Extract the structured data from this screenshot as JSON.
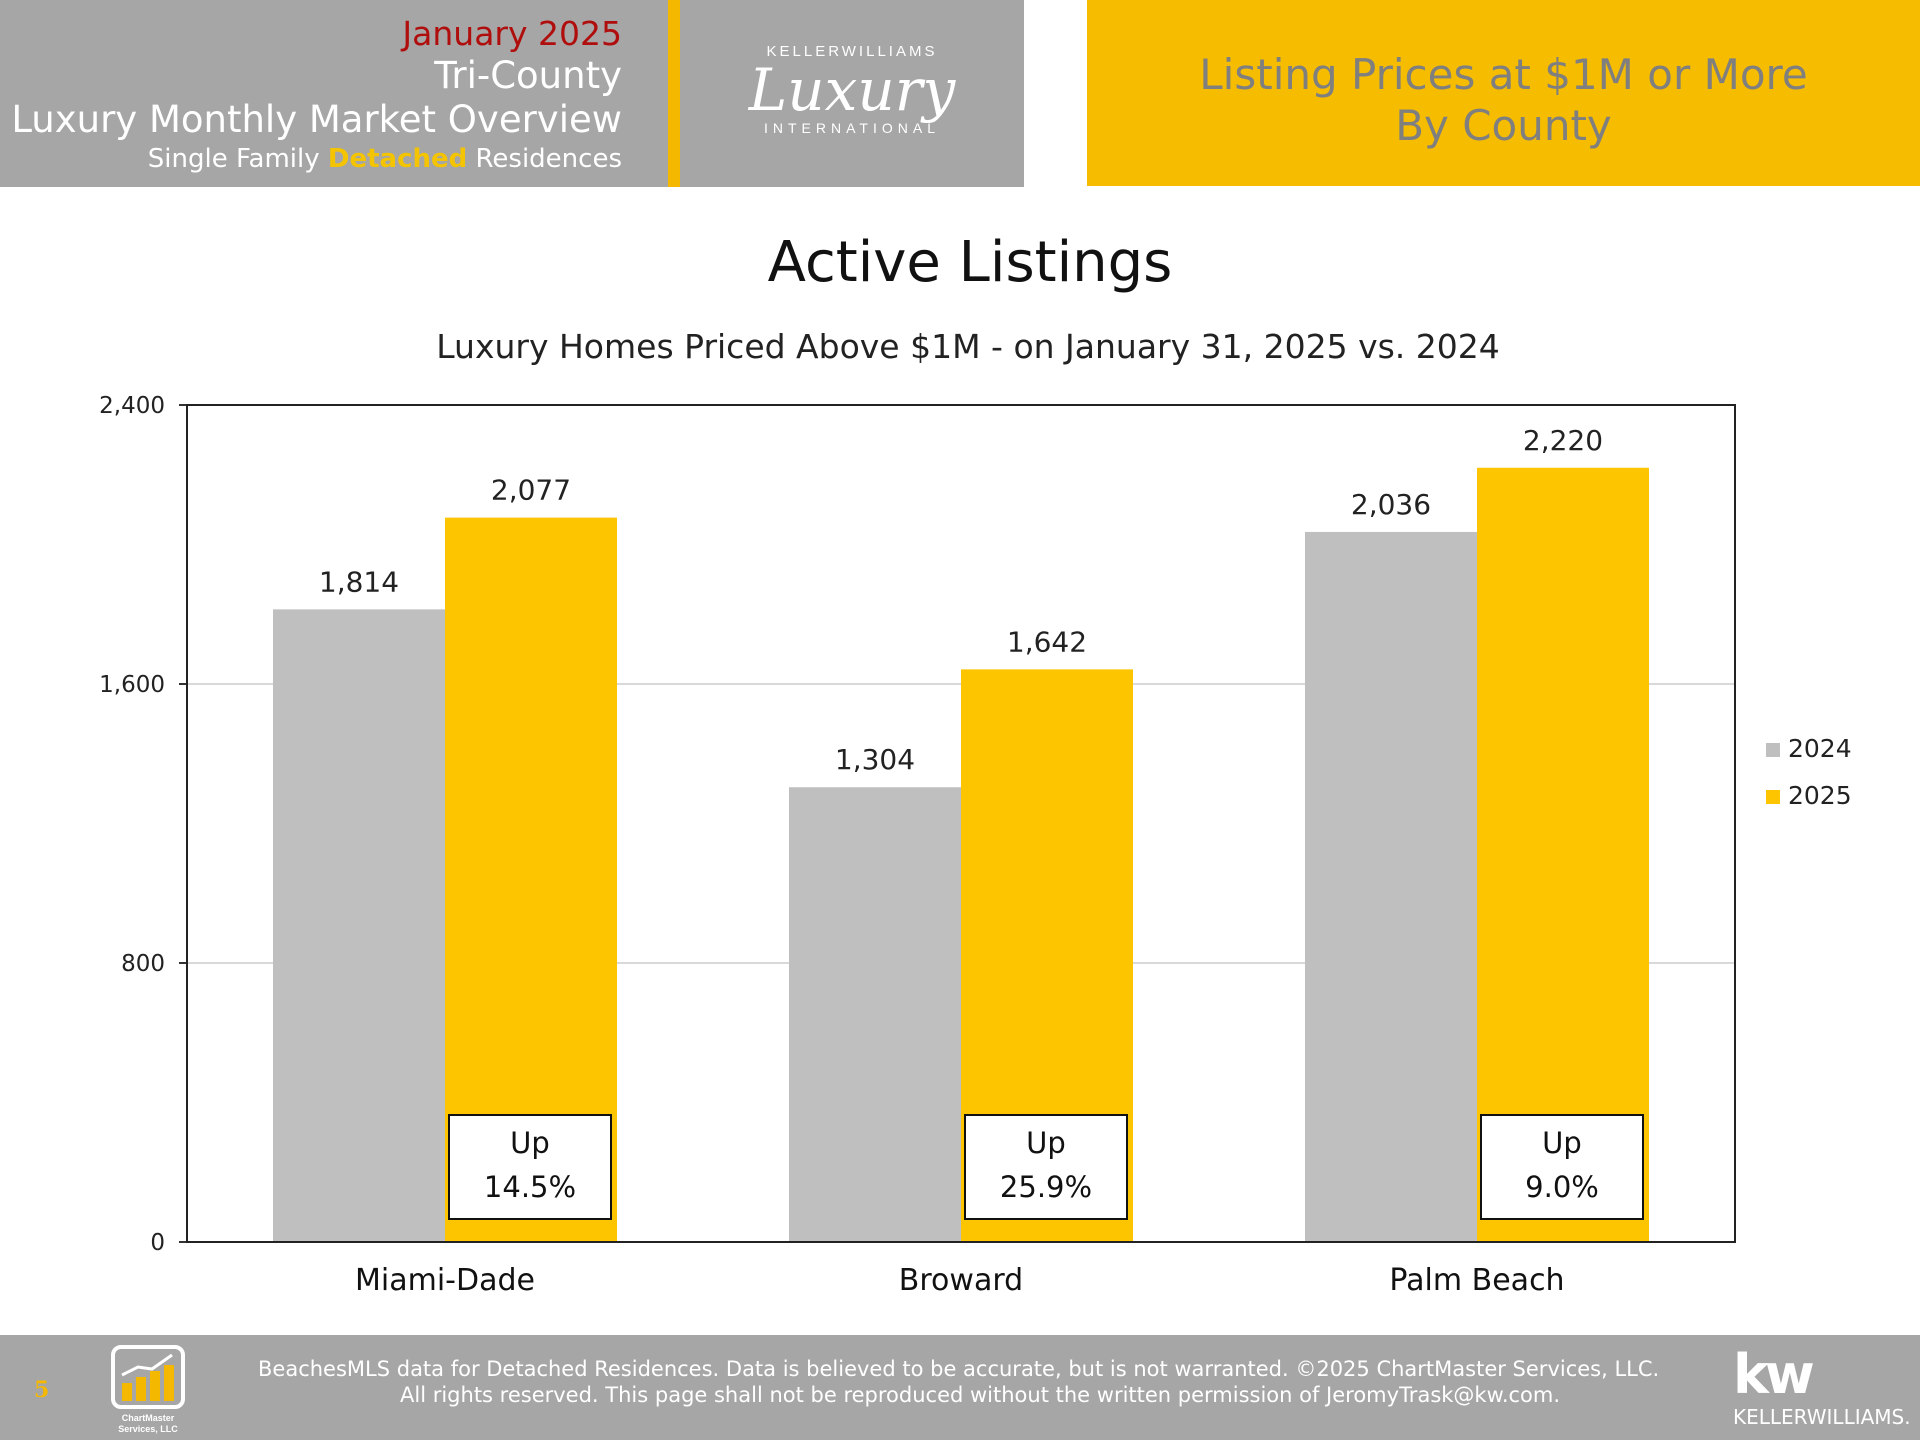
{
  "header": {
    "month": "January 2025",
    "region": "Tri-County",
    "overview": "Luxury Monthly Market Overview",
    "subline_pre": "Single Family ",
    "subline_accent": "Detached",
    "subline_post": " Residences",
    "logo_brand": "KELLERWILLIAMS",
    "logo_script": "Luxury",
    "logo_sub": "INTERNATIONAL",
    "right_line1": "Listing Prices at $1M or More",
    "right_line2": "By County"
  },
  "colors": {
    "gray_panel": "#a6a6a6",
    "gold": "#f5bc00",
    "bar_2024": "#bfbfbf",
    "bar_2025": "#fcc500",
    "month_red": "#b00d0d"
  },
  "chart_data": {
    "type": "bar",
    "title": "Active Listings",
    "subtitle": "Luxury Homes Priced Above $1M - on January 31,  2025 vs. 2024",
    "categories": [
      "Miami-Dade",
      "Broward",
      "Palm Beach"
    ],
    "series": [
      {
        "name": "2024",
        "values": [
          1814,
          1304,
          2036
        ],
        "labels": [
          "1,814",
          "1,304",
          "2,036"
        ],
        "color": "#bfbfbf"
      },
      {
        "name": "2025",
        "values": [
          2077,
          1642,
          2220
        ],
        "labels": [
          "2,077",
          "1,642",
          "2,220"
        ],
        "color": "#fcc500"
      }
    ],
    "ylim": [
      0,
      2400
    ],
    "yticks": [
      0,
      800,
      1600,
      2400
    ],
    "ytick_labels": [
      "0",
      "800",
      "1,600",
      "2,400"
    ],
    "grid": true,
    "legend_position": "right",
    "annotations": [
      {
        "category": "Miami-Dade",
        "line1": "Up",
        "line2": "14.5%"
      },
      {
        "category": "Broward",
        "line1": "Up",
        "line2": "25.9%"
      },
      {
        "category": "Palm Beach",
        "line1": "Up",
        "line2": "9.0%"
      }
    ]
  },
  "footer": {
    "page_number": "5",
    "note_line1": "BeachesMLS data for Detached Residences.  Data is believed to be accurate, but is not warranted.   ©2025  ChartMaster Services, LLC.",
    "note_line2": "All rights reserved. This page shall not be reproduced without the written permission of JeromyTrask@kw.com.",
    "chartmaster_line1": "ChartMaster",
    "chartmaster_line2": "Services, LLC",
    "kw_mark": "kw",
    "kw_name": "KELLERWILLIAMS."
  }
}
